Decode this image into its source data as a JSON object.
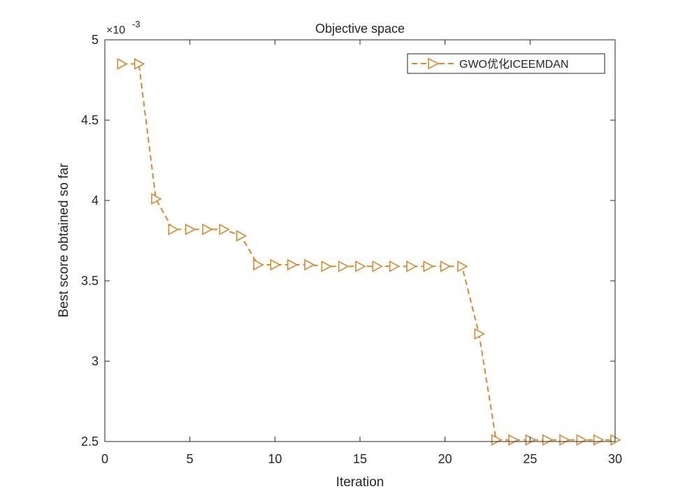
{
  "chart_data": {
    "type": "line",
    "title": "Objective space",
    "xlabel": "Iteration",
    "ylabel": "Best score obtained so far",
    "xlim": [
      0,
      30
    ],
    "ylim": [
      0.0025,
      0.005
    ],
    "x_ticks": [
      0,
      5,
      10,
      15,
      20,
      25,
      30
    ],
    "x_tick_labels": [
      "0",
      "5",
      "10",
      "15",
      "20",
      "25",
      "30"
    ],
    "y_ticks": [
      0.0025,
      0.003,
      0.0035,
      0.004,
      0.0045,
      0.005
    ],
    "y_tick_labels": [
      "2.5",
      "3",
      "3.5",
      "4",
      "4.5",
      "5"
    ],
    "y_exponent_base": "×10",
    "y_exponent_power": "-3",
    "grid": false,
    "legend_position": "top-right",
    "series": [
      {
        "name": "GWO优化ICEEMDAN",
        "color": "#D9892B",
        "line_style": "dashed",
        "marker": "triangle-right",
        "x": [
          1,
          2,
          3,
          4,
          5,
          6,
          7,
          8,
          9,
          10,
          11,
          12,
          13,
          14,
          15,
          16,
          17,
          18,
          19,
          20,
          21,
          22,
          23,
          24,
          25,
          26,
          27,
          28,
          29,
          30
        ],
        "values": [
          0.00485,
          0.00485,
          0.00401,
          0.00382,
          0.00382,
          0.00382,
          0.00382,
          0.00378,
          0.0036,
          0.0036,
          0.0036,
          0.0036,
          0.00359,
          0.00359,
          0.00359,
          0.00359,
          0.00359,
          0.00359,
          0.00359,
          0.00359,
          0.00359,
          0.00317,
          0.00251,
          0.00251,
          0.00251,
          0.00251,
          0.00251,
          0.00251,
          0.00251,
          0.00251
        ]
      }
    ]
  }
}
